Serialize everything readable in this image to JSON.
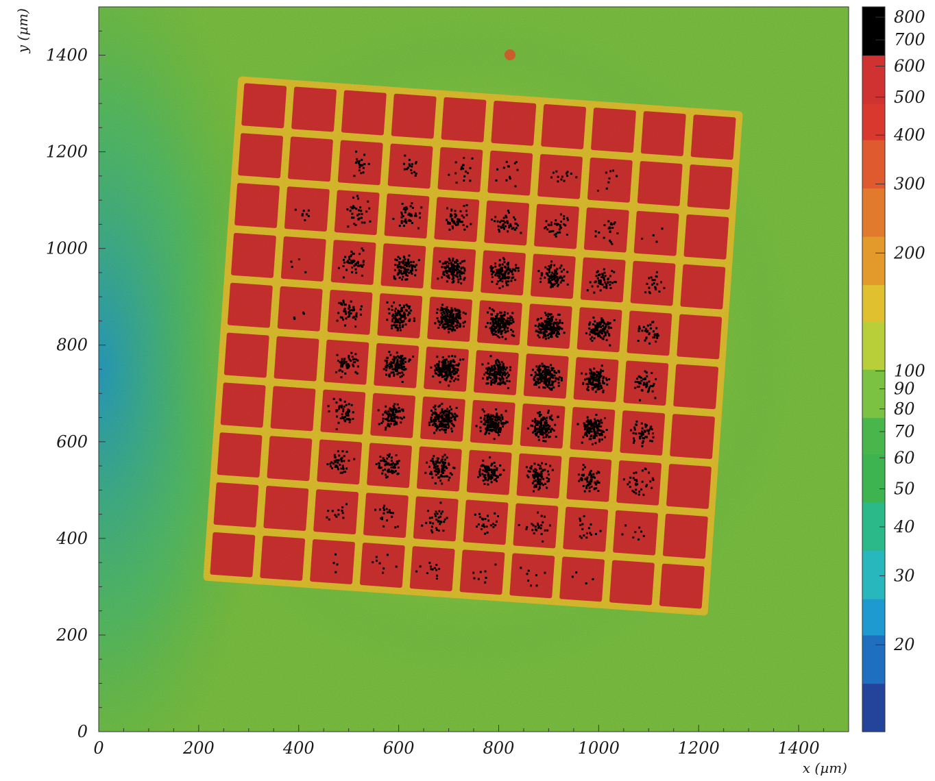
{
  "chart_data": {
    "type": "heatmap",
    "title": "",
    "xlabel": "x (µm)",
    "ylabel": "y (µm)",
    "xlim": [
      0,
      1500
    ],
    "ylim": [
      0,
      1500
    ],
    "x_ticks": [
      "0",
      "200",
      "400",
      "600",
      "800",
      "1000",
      "1200",
      "1400"
    ],
    "y_ticks": [
      "0",
      "200",
      "400",
      "600",
      "800",
      "1000",
      "1200",
      "1400"
    ],
    "colorbar": {
      "scale": "log",
      "range": [
        12,
        850
      ],
      "tick_labels": [
        "20",
        "30",
        "40",
        "50",
        "60",
        "70",
        "80",
        "90",
        "100",
        "200",
        "300",
        "400",
        "500",
        "600",
        "700",
        "800"
      ],
      "tick_values": [
        20,
        30,
        40,
        50,
        60,
        70,
        80,
        90,
        100,
        200,
        300,
        400,
        500,
        600,
        700,
        800
      ],
      "colormap": [
        "#24439a",
        "#1e6fc0",
        "#1e9ad0",
        "#27b7bd",
        "#2bb98a",
        "#3db44f",
        "#48b64b",
        "#7cc242",
        "#b8cf39",
        "#e0c02f",
        "#e49a2b",
        "#e27a2d",
        "#df5b2f",
        "#d8382e",
        "#cf3230",
        "#000000"
      ]
    },
    "grid": false,
    "description_of_content": "",
    "background_level": 90,
    "halo_level": 250,
    "pixel_matrix": {
      "rows": 10,
      "cols": 10,
      "pixel_value": 650,
      "saturated_value": 850,
      "rotation_deg": 4,
      "saturated_fraction_by_row_top_to_bottom": [
        [
          0,
          0,
          0,
          0,
          0,
          0,
          0,
          0,
          0,
          0
        ],
        [
          0,
          0,
          0.05,
          0.04,
          0.04,
          0.03,
          0.03,
          0.02,
          0,
          0
        ],
        [
          0,
          0.02,
          0.08,
          0.1,
          0.12,
          0.1,
          0.08,
          0.05,
          0.01,
          0
        ],
        [
          0,
          0.01,
          0.12,
          0.22,
          0.3,
          0.28,
          0.22,
          0.12,
          0.05,
          0
        ],
        [
          0,
          0.01,
          0.12,
          0.26,
          0.45,
          0.42,
          0.4,
          0.25,
          0.08,
          0
        ],
        [
          0,
          0,
          0.12,
          0.28,
          0.45,
          0.38,
          0.4,
          0.3,
          0.1,
          0
        ],
        [
          0,
          0,
          0.12,
          0.22,
          0.4,
          0.35,
          0.32,
          0.28,
          0.12,
          0
        ],
        [
          0,
          0,
          0.1,
          0.16,
          0.22,
          0.22,
          0.2,
          0.15,
          0.08,
          0
        ],
        [
          0,
          0,
          0.03,
          0.05,
          0.08,
          0.06,
          0.06,
          0.04,
          0.02,
          0
        ],
        [
          0,
          0,
          0.01,
          0.02,
          0.03,
          0.02,
          0.02,
          0.01,
          0,
          0
        ]
      ]
    }
  }
}
